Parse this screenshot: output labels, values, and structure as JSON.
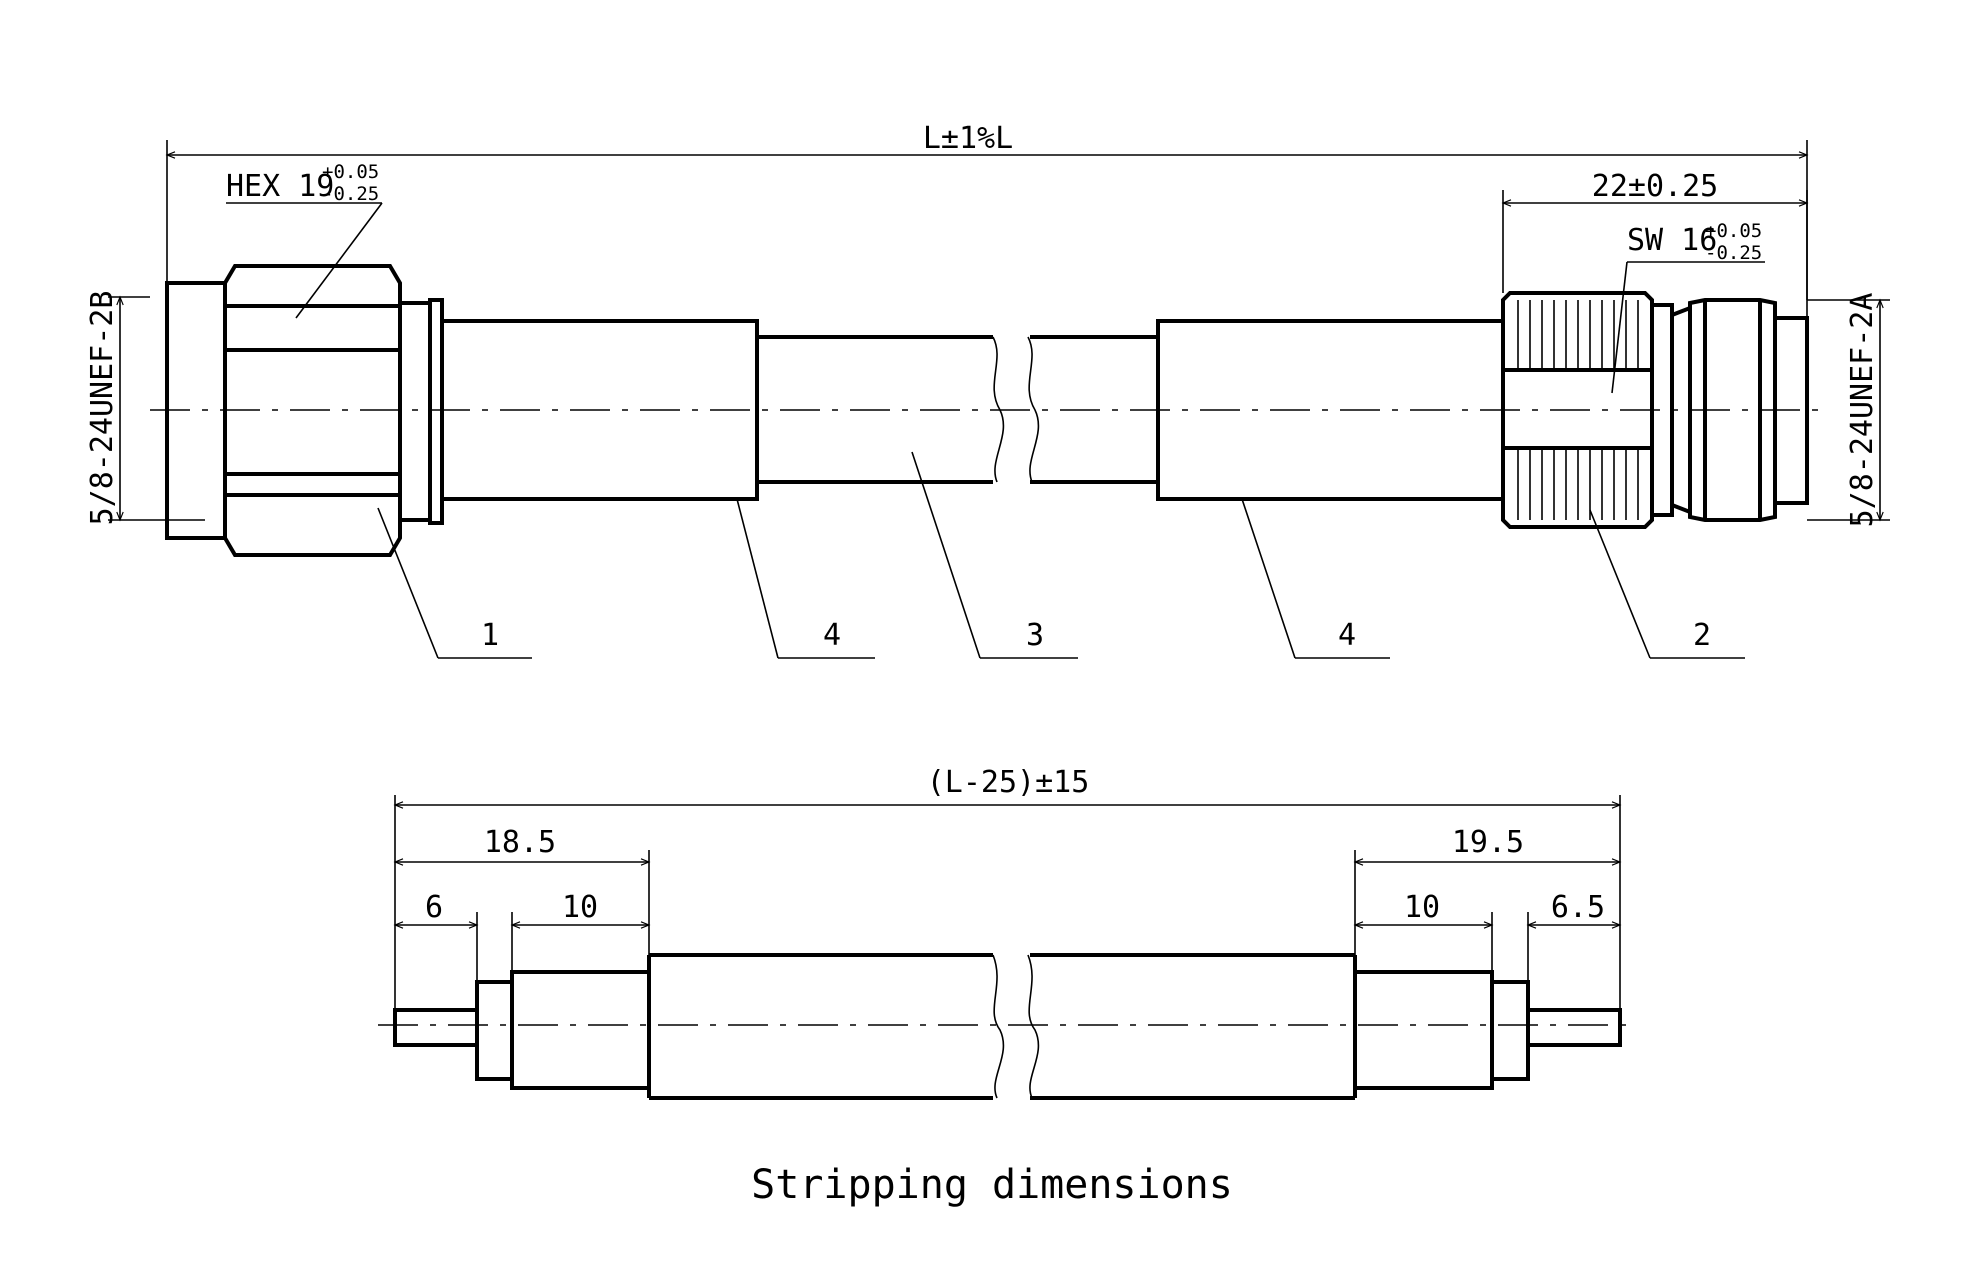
{
  "top_view": {
    "overall_length": "L±1%L",
    "hex_label": "HEX 19",
    "hex_tol_plus": "+0.05",
    "hex_tol_minus": "-0.25",
    "right_length": "22±0.25",
    "sw_label": "SW 16",
    "sw_tol_plus": "+0.05",
    "sw_tol_minus": "-0.25",
    "left_thread": "5/8-24UNEF-2B",
    "right_thread": "5/8-24UNEF-2A",
    "callouts": [
      "1",
      "4",
      "3",
      "4",
      "2"
    ]
  },
  "bottom_view": {
    "overall_length": "(L-25)±15",
    "left_strip_total": "18.5",
    "left_pin": "6",
    "left_braid": "10",
    "right_strip_total": "19.5",
    "right_braid": "10",
    "right_pin": "6.5"
  },
  "caption": "Stripping dimensions"
}
